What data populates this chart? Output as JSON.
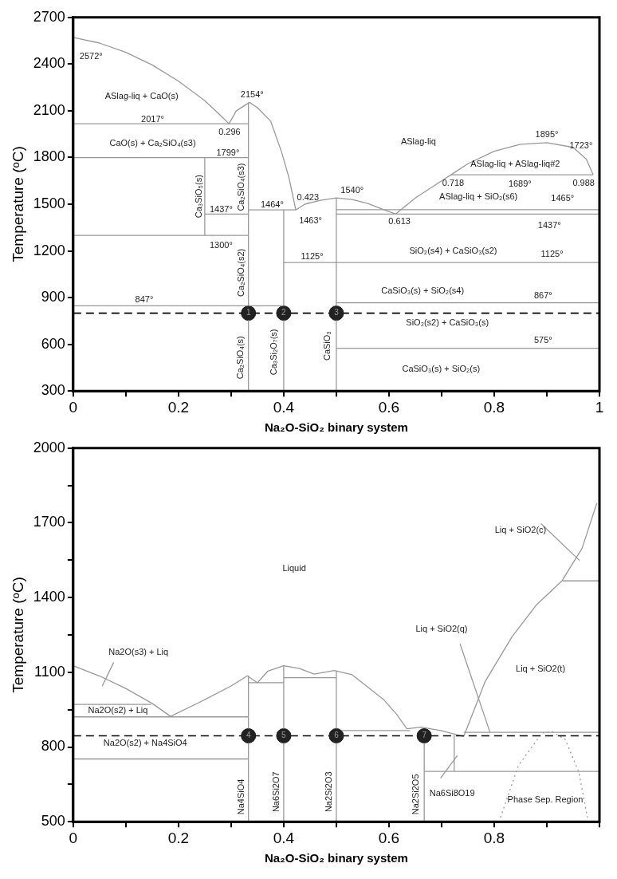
{
  "chart_data": [
    {
      "type": "line",
      "xlabel": "Na₂O-SiO₂ binary system",
      "ylabel": "Temperature (ᵒC)",
      "xlim": [
        0,
        1
      ],
      "ylim": [
        300,
        2700
      ],
      "xticks": [
        0,
        {
          "value": 0.1,
          "label": null
        },
        0.2,
        {
          "value": 0.3,
          "label": null
        },
        0.4,
        {
          "value": 0.5,
          "label": null
        },
        0.6,
        {
          "value": 0.7,
          "label": null
        },
        0.8,
        {
          "value": 0.9,
          "label": null
        },
        1
      ],
      "yticks": [
        300,
        600,
        900,
        1200,
        1500,
        1800,
        2100,
        2400,
        2700
      ],
      "grid": false,
      "legend": false,
      "marker": "none",
      "series": [
        {
          "x": [
            0,
            0.05,
            0.1,
            0.15,
            0.2,
            0.25,
            0.28,
            0.296
          ],
          "values": [
            2572,
            2535,
            2475,
            2395,
            2290,
            2165,
            2070,
            2017
          ],
          "color": "#999999"
        },
        {
          "x": [
            0.296,
            0.31,
            0.335,
            0.35,
            0.375,
            0.396,
            0.41,
            0.423
          ],
          "values": [
            2017,
            2100,
            2154,
            2120,
            2035,
            1835,
            1670,
            1463
          ],
          "color": "#999999"
        },
        {
          "x": [
            0.423,
            0.44,
            0.47,
            0.5,
            0.53,
            0.56,
            0.59,
            0.613
          ],
          "values": [
            1463,
            1500,
            1525,
            1540,
            1530,
            1505,
            1465,
            1437
          ],
          "color": "#999999"
        },
        {
          "x": [
            0.613,
            0.65,
            0.7,
            0.718,
            0.75,
            0.8,
            0.85,
            0.9,
            0.95,
            0.975,
            0.988
          ],
          "values": [
            1437,
            1540,
            1650,
            1689,
            1760,
            1840,
            1885,
            1895,
            1865,
            1790,
            1689
          ],
          "color": "#999999"
        },
        {
          "x": [
            0,
            0.333
          ],
          "values": [
            2017,
            2017
          ],
          "color": "#999999"
        },
        {
          "x": [
            0,
            0.333
          ],
          "values": [
            1799,
            1799
          ],
          "color": "#999999"
        },
        {
          "x": [
            0.25,
            0.333
          ],
          "values": [
            1437,
            1437
          ],
          "color": "#999999"
        },
        {
          "x": [
            0,
            0.333
          ],
          "values": [
            1300,
            1300
          ],
          "color": "#999999"
        },
        {
          "x": [
            0.333,
            0.423
          ],
          "values": [
            1464,
            1464
          ],
          "color": "#999999"
        },
        {
          "x": [
            0.5,
            1
          ],
          "values": [
            1465,
            1465
          ],
          "color": "#999999"
        },
        {
          "x": [
            0.5,
            1
          ],
          "values": [
            1437,
            1437
          ],
          "color": "#999999"
        },
        {
          "x": [
            0.718,
            0.988
          ],
          "values": [
            1689,
            1689
          ],
          "color": "#999999"
        },
        {
          "x": [
            0.4,
            1
          ],
          "values": [
            1125,
            1125
          ],
          "color": "#999999"
        },
        {
          "x": [
            0,
            0.4
          ],
          "values": [
            847,
            847
          ],
          "color": "#999999"
        },
        {
          "x": [
            0.5,
            1
          ],
          "values": [
            867,
            867
          ],
          "color": "#999999"
        },
        {
          "x": [
            0.5,
            1
          ],
          "values": [
            575,
            575
          ],
          "color": "#999999"
        },
        {
          "x": [
            0.25,
            0.25
          ],
          "values": [
            1300,
            1799
          ],
          "color": "#999999"
        },
        {
          "x": [
            0.333,
            0.333
          ],
          "values": [
            300,
            2154
          ],
          "color": "#999999"
        },
        {
          "x": [
            0.4,
            0.4
          ],
          "values": [
            300,
            1464
          ],
          "color": "#999999"
        },
        {
          "x": [
            0.5,
            0.5
          ],
          "values": [
            300,
            1540
          ],
          "color": "#999999"
        },
        {
          "type": "scatter",
          "marker": "circle",
          "x": [
            0.333,
            0.4,
            0.5
          ],
          "values": [
            800,
            800,
            800
          ],
          "color": "#222222"
        }
      ],
      "ref_lines": [
        {
          "axis": "y",
          "value": 800,
          "color": "#000000",
          "line_style": "dashed"
        }
      ],
      "annotations": [
        "2572°",
        "ASlag-liq + CaO(s)",
        "2154°",
        "2017°",
        "0.296",
        "CaO(s) + Ca₂SiO₄(s3)",
        "1799°",
        "1437°",
        "1464°",
        "0.423",
        "1463°",
        "1300°",
        "1125°",
        "1540°",
        "ASlag-liq",
        "1895°",
        "1723°",
        "ASlag-liq + ASlag-liq#2",
        "0.718",
        "1689°",
        "0.988",
        "ASlag-liq + SiO₂(s6)",
        "1465°",
        "0.613",
        "1437°",
        "SiO₂(s4) + CaSiO₃(s2)",
        "1125°",
        "847°",
        "CaSiO₃(s) + SiO₂(s4)",
        "867°",
        "SiO₂(s2) + CaSiO₃(s)",
        "575°",
        "CaSiO₃(s) + SiO₂(s)",
        "Ca₃SiO₅(s)",
        "Ca₂SiO₄(s3)",
        "Ca₂SiO₄(s2)",
        "Ca₂SiO₄(s)",
        "Ca₃Si₂O₇(s)",
        "CaSiO₃",
        {
          "text": "1",
          "x": 0.333,
          "y": 800
        },
        {
          "text": "2",
          "x": 0.4,
          "y": 800
        },
        {
          "text": "3",
          "x": 0.5,
          "y": 800
        }
      ]
    },
    {
      "type": "line",
      "xlabel": "Na₂O-SiO₂ binary system",
      "ylabel": "Temperature (ᵒC)",
      "xlim": [
        0,
        1
      ],
      "ylim": [
        500,
        2000
      ],
      "xticks": [
        0,
        {
          "value": 0.1,
          "label": null
        },
        0.2,
        {
          "value": 0.3,
          "label": null
        },
        0.4,
        {
          "value": 0.5,
          "label": null
        },
        0.6,
        {
          "value": 0.7,
          "label": null
        },
        0.8,
        {
          "value": 0.9,
          "label": null
        },
        {
          "value": 1,
          "label": null
        }
      ],
      "yticks": [
        500,
        {
          "value": 650,
          "label": null
        },
        800,
        {
          "value": 950,
          "label": null
        },
        1100,
        {
          "value": 1250,
          "label": null
        },
        1400,
        {
          "value": 1550,
          "label": null
        },
        1700,
        {
          "value": 1850,
          "label": null
        },
        2000
      ],
      "grid": false,
      "legend": false,
      "marker": "none",
      "series": [
        {
          "x": [
            0,
            0.05,
            0.1,
            0.15,
            0.185
          ],
          "values": [
            1126,
            1085,
            1035,
            975,
            923
          ],
          "color": "#999999"
        },
        {
          "x": [
            0.185,
            0.25,
            0.3,
            0.331,
            0.35
          ],
          "values": [
            923,
            990,
            1045,
            1086,
            1058
          ],
          "color": "#999999"
        },
        {
          "x": [
            0.35,
            0.37,
            0.4,
            0.43,
            0.458
          ],
          "values": [
            1058,
            1105,
            1126,
            1115,
            1093
          ],
          "color": "#999999"
        },
        {
          "x": [
            0.458,
            0.496,
            0.53,
            0.56,
            0.59,
            0.615,
            0.634
          ],
          "values": [
            1093,
            1107,
            1090,
            1040,
            990,
            930,
            873
          ],
          "color": "#999999"
        },
        {
          "x": [
            0.634,
            0.662,
            0.7,
            0.742
          ],
          "values": [
            873,
            880,
            865,
            842
          ],
          "color": "#999999"
        },
        {
          "x": [
            0.742,
            0.783,
            0.834,
            0.88,
            0.929,
            0.967,
            0.995
          ],
          "values": [
            842,
            1064,
            1243,
            1370,
            1468,
            1598,
            1779
          ],
          "color": "#999999"
        },
        {
          "x": [
            0,
            0.148
          ],
          "values": [
            971,
            971
          ],
          "color": "#999999"
        },
        {
          "x": [
            0,
            0.333
          ],
          "values": [
            921,
            921
          ],
          "color": "#999999"
        },
        {
          "x": [
            0,
            0.333
          ],
          "values": [
            752,
            752
          ],
          "color": "#999999"
        },
        {
          "x": [
            0.333,
            0.4
          ],
          "values": [
            1058,
            1058
          ],
          "color": "#999999"
        },
        {
          "x": [
            0.4,
            0.5
          ],
          "values": [
            1078,
            1078
          ],
          "color": "#999999"
        },
        {
          "x": [
            0.5,
            0.64
          ],
          "values": [
            866,
            866
          ],
          "color": "#999999"
        },
        {
          "x": [
            0.742,
            1
          ],
          "values": [
            859,
            859
          ],
          "color": "#999999"
        },
        {
          "x": [
            0.667,
            1
          ],
          "values": [
            702,
            702
          ],
          "color": "#999999"
        },
        {
          "x": [
            0.93,
            1
          ],
          "values": [
            1467,
            1467
          ],
          "color": "#999999"
        },
        {
          "x": [
            0.333,
            0.333
          ],
          "values": [
            500,
            1086
          ],
          "color": "#999999"
        },
        {
          "x": [
            0.4,
            0.4
          ],
          "values": [
            500,
            1126
          ],
          "color": "#999999"
        },
        {
          "x": [
            0.5,
            0.5
          ],
          "values": [
            500,
            1107
          ],
          "color": "#999999"
        },
        {
          "x": [
            0.667,
            0.667
          ],
          "values": [
            500,
            866
          ],
          "color": "#999999"
        },
        {
          "x": [
            0.724,
            0.724
          ],
          "values": [
            702,
            848
          ],
          "color": "#999999"
        },
        {
          "x": [
            0.077,
            0.055
          ],
          "values": [
            1140,
            1044
          ],
          "color": "#999999"
        },
        {
          "x": [
            0.735,
            0.792
          ],
          "values": [
            1215,
            859
          ],
          "color": "#999999"
        },
        {
          "x": [
            0.698,
            0.73
          ],
          "values": [
            675,
            766
          ],
          "color": "#999999"
        },
        {
          "x": [
            0.889,
            0.962
          ],
          "values": [
            1697,
            1549
          ],
          "color": "#999999"
        },
        {
          "x": [
            0.812,
            0.846,
            0.891,
            0.91,
            0.935,
            0.961,
            0.977
          ],
          "values": [
            517,
            726,
            856,
            862,
            830,
            698,
            517
          ],
          "color": "#999999",
          "line_style": "dotted"
        },
        {
          "type": "scatter",
          "marker": "circle",
          "x": [
            0.333,
            0.4,
            0.5,
            0.667
          ],
          "values": [
            845,
            845,
            845,
            845
          ],
          "color": "#222222"
        }
      ],
      "ref_lines": [
        {
          "axis": "y",
          "value": 845,
          "color": "#000000",
          "line_style": "dashed"
        }
      ],
      "annotations": [
        "Liquid",
        "Liq + SiO2(c)",
        "Liq + SiO2(q)",
        "Liq + SiO2(t)",
        "Na2O(s3) + Liq",
        "Na2O(s2) + Liq",
        "Na2O(s2) + Na4SiO4",
        "Na6Si8O19",
        "Phase Sep. Region",
        "Na4SiO4",
        "Na6Si2O7",
        "Na2Si2O3",
        "Na2Si2O5",
        {
          "text": "4",
          "x": 0.333,
          "y": 845
        },
        {
          "text": "5",
          "x": 0.4,
          "y": 845
        },
        {
          "text": "6",
          "x": 0.5,
          "y": 845
        },
        {
          "text": "7",
          "x": 0.667,
          "y": 845
        }
      ]
    }
  ]
}
